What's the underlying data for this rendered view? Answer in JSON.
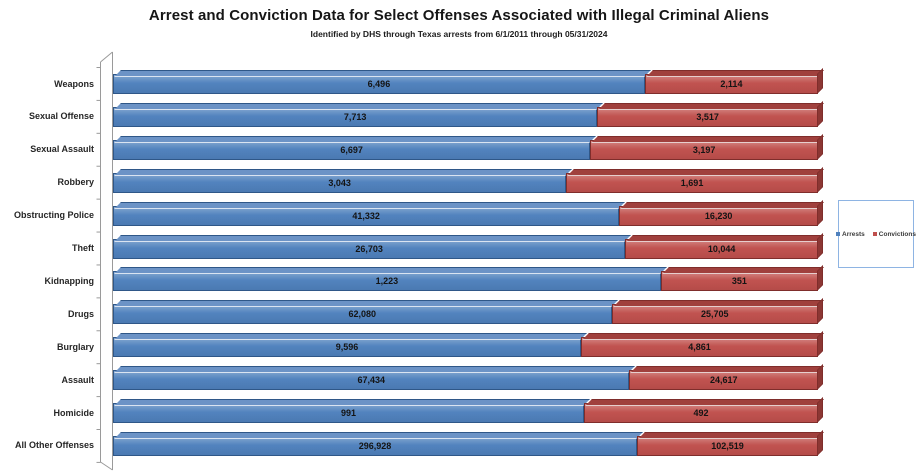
{
  "title": "Arrest and Conviction Data for Select Offenses Associated with Illegal Criminal Aliens",
  "subtitle": "Identified by DHS through Texas arrests from 6/1/2011 through 05/31/2024",
  "legend": {
    "position": "right",
    "items": [
      {
        "label": "Arrests",
        "color": "#4F81BD"
      },
      {
        "label": "Convictions",
        "color": "#C0504D"
      }
    ]
  },
  "chart_data": {
    "type": "bar",
    "variant": "3d-horizontal-100pct-stacked",
    "orientation": "horizontal",
    "grid": false,
    "data_labels": true,
    "legend_position": "right",
    "title": "Arrest and Conviction Data for Select Offenses Associated with Illegal Criminal Aliens",
    "subtitle": "Identified by DHS through Texas arrests from 6/1/2011 through 05/31/2024",
    "categories": [
      "Weapons",
      "Sexual Offense",
      "Sexual Assault",
      "Robbery",
      "Obstructing Police",
      "Theft",
      "Kidnapping",
      "Drugs",
      "Burglary",
      "Assault",
      "Homicide",
      "All Other Offenses"
    ],
    "series": [
      {
        "name": "Arrests",
        "color": "#4F81BD",
        "values": [
          6496,
          7713,
          6697,
          3043,
          41332,
          26703,
          1223,
          62080,
          9596,
          67434,
          991,
          296928
        ]
      },
      {
        "name": "Convictions",
        "color": "#C0504D",
        "values": [
          2114,
          3517,
          3197,
          1691,
          16230,
          10044,
          351,
          25705,
          4861,
          24617,
          492,
          102519
        ]
      }
    ],
    "colors": {
      "arrests_face": "#4F81BD",
      "arrests_top": "#6C93C6",
      "arrests_edge": "#2F5788",
      "convictions_face": "#C0504D",
      "convictions_top": "#A0403D",
      "convictions_cap": "#8C3734",
      "convictions_edge": "#7F2D2B"
    }
  }
}
